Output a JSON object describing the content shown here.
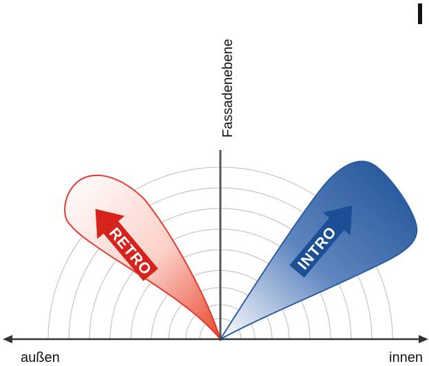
{
  "axis_label": "Fassadenebene",
  "lobes": [
    {
      "label": "RETRO"
    },
    {
      "label": "INTRO"
    }
  ],
  "left_label": "außen",
  "right_label": "innen"
}
